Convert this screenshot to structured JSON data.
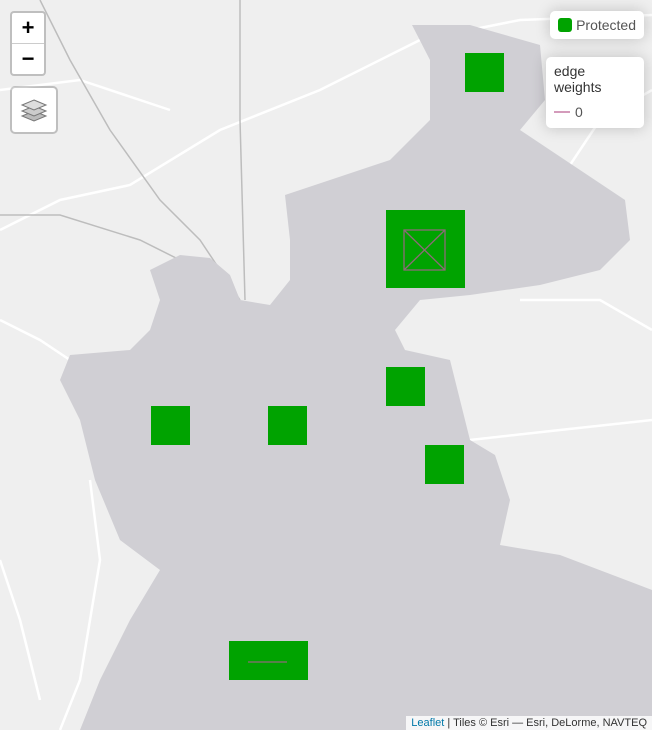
{
  "map": {
    "land_color": "#efefef",
    "water_color": "#d0cfd4",
    "protected_color": "#00a300",
    "edge_color": "#b0688f"
  },
  "controls": {
    "zoom_in": "+",
    "zoom_out": "−",
    "layers_icon": "layers-icon"
  },
  "legend_protected": {
    "label": "Protected",
    "color": "#00a300"
  },
  "legend_edges": {
    "title": "edge weights",
    "items": [
      {
        "label": "0",
        "color": "#d49bbb"
      }
    ]
  },
  "attribution": {
    "link": "Leaflet",
    "text": " | Tiles © Esri — Esri, DeLorme, NAVTEQ"
  }
}
